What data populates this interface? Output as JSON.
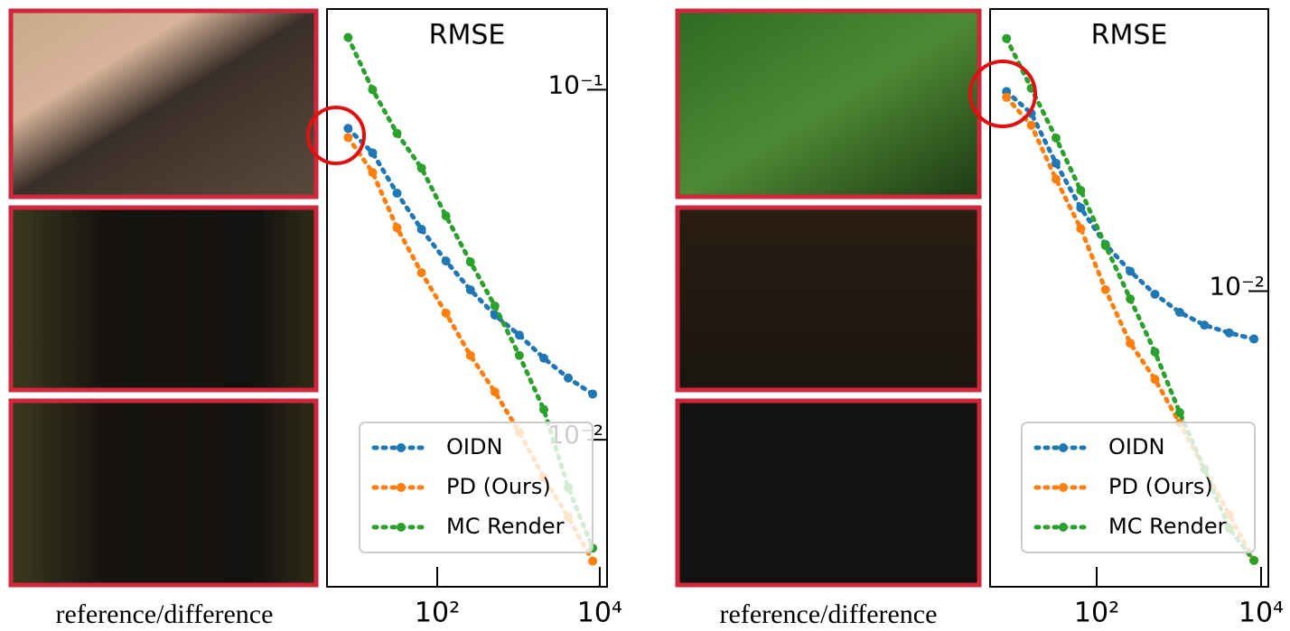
{
  "figure": {
    "panels": [
      {
        "caption": "reference/difference"
      },
      {
        "caption": "reference/difference"
      }
    ]
  },
  "chart_data": [
    {
      "type": "line",
      "title": "RMSE",
      "xscale": "log",
      "yscale": "log",
      "legend": "lower center",
      "x": [
        8,
        16,
        32,
        64,
        128,
        256,
        512,
        1024,
        2048,
        4096,
        8192
      ],
      "xlim": [
        4.4,
        12300
      ],
      "ylim": [
        0.0038,
        0.17
      ],
      "xticks": [
        {
          "value": 100,
          "label": "10²"
        },
        {
          "value": 10000,
          "label": "10⁴"
        }
      ],
      "yticks": [
        {
          "value": 0.1,
          "label": "10⁻¹"
        },
        {
          "value": 0.01,
          "label": "10⁻²"
        }
      ],
      "series": [
        {
          "name": "OIDN",
          "color": "#1f77b4",
          "values": [
            0.0775,
            0.066,
            0.0506,
            0.0399,
            0.0324,
            0.0268,
            0.0227,
            0.0199,
            0.0171,
            0.015,
            0.0135
          ]
        },
        {
          "name": "PD (Ours)",
          "color": "#ff7f0e",
          "values": [
            0.073,
            0.058,
            0.0403,
            0.03,
            0.023,
            0.0174,
            0.0137,
            0.0105,
            0.0078,
            0.006,
            0.0045
          ]
        },
        {
          "name": "MC Render",
          "color": "#2ca02c",
          "values": [
            0.141,
            0.1,
            0.075,
            0.0597,
            0.0436,
            0.0322,
            0.0241,
            0.0174,
            0.0122,
            0.0073,
            0.0049
          ]
        }
      ]
    },
    {
      "type": "line",
      "title": "RMSE",
      "xscale": "log",
      "yscale": "log",
      "legend": "lower center",
      "x": [
        8,
        16,
        32,
        64,
        128,
        256,
        512,
        1024,
        2048,
        4096,
        8192
      ],
      "xlim": [
        5.05,
        12250
      ],
      "ylim": [
        0.00143,
        0.064
      ],
      "xticks": [
        {
          "value": 100,
          "label": "10²"
        },
        {
          "value": 10000,
          "label": "10⁴"
        }
      ],
      "yticks": [
        {
          "value": 0.01,
          "label": "10⁻²"
        }
      ],
      "series": [
        {
          "name": "OIDN",
          "color": "#1f77b4",
          "values": [
            0.0372,
            0.0322,
            0.0232,
            0.0173,
            0.0136,
            0.0114,
            0.0098,
            0.0087,
            0.008,
            0.0076,
            0.0073
          ]
        },
        {
          "name": "PD (Ours)",
          "color": "#ff7f0e",
          "values": [
            0.0358,
            0.0298,
            0.0209,
            0.0151,
            0.0101,
            0.0071,
            0.0056,
            0.0042,
            0.0031,
            0.0023,
            0.0017
          ]
        },
        {
          "name": "MC Render",
          "color": "#2ca02c",
          "values": [
            0.0527,
            0.038,
            0.0274,
            0.0194,
            0.0135,
            0.0095,
            0.0067,
            0.0045,
            0.0031,
            0.0021,
            0.0017
          ]
        }
      ]
    }
  ]
}
